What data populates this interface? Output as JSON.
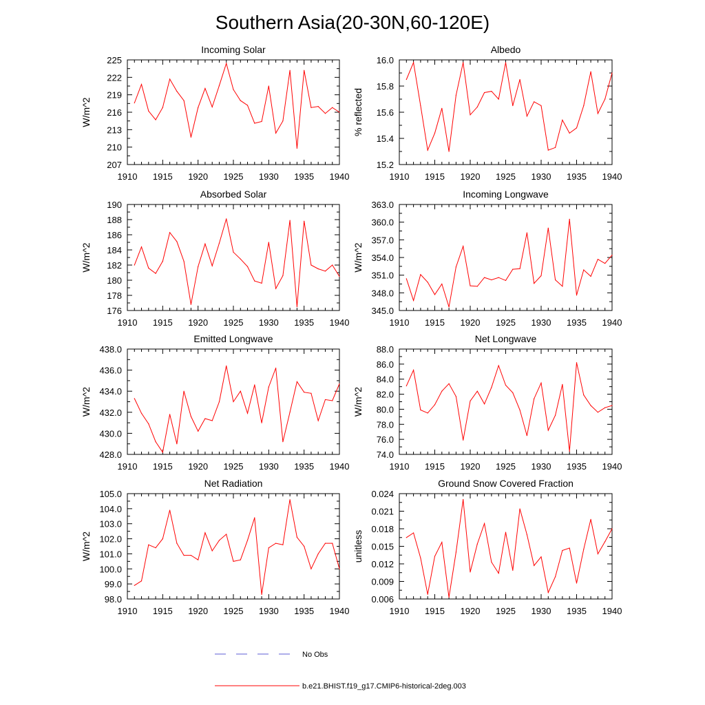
{
  "figure": {
    "title": "Southern Asia(20-30N,60-120E)",
    "legend": [
      {
        "label": "No Obs",
        "color": "#5b5bd6",
        "dash": "dashed"
      },
      {
        "label": "b.e21.BHIST.f19_g17.CMIP6-historical-2deg.003",
        "color": "#ff0000",
        "dash": "solid"
      }
    ]
  },
  "chart_data": [
    {
      "type": "line",
      "title": "Incoming Solar",
      "ylabel": "W/m^2",
      "xlim": [
        1910,
        1940
      ],
      "ylim": [
        207,
        225
      ],
      "yticks": [
        "207",
        "210",
        "213",
        "216",
        "219",
        "222",
        "225"
      ],
      "xticks": [
        "1910",
        "1915",
        "1920",
        "1925",
        "1930",
        "1935",
        "1940"
      ],
      "x": [
        1911,
        1912,
        1913,
        1914,
        1915,
        1916,
        1917,
        1918,
        1919,
        1920,
        1921,
        1922,
        1923,
        1924,
        1925,
        1926,
        1927,
        1928,
        1929,
        1930,
        1931,
        1932,
        1933,
        1934,
        1935,
        1936,
        1937,
        1938,
        1939,
        1940
      ],
      "series": [
        {
          "name": "b.e21.BHIST.f19_g17.CMIP6-historical-2deg.003",
          "color": "#ff0000",
          "values": [
            217.6,
            220.8,
            216.2,
            214.7,
            216.8,
            221.7,
            219.6,
            218.0,
            211.7,
            216.8,
            220.1,
            216.9,
            220.6,
            224.4,
            219.9,
            218.0,
            217.2,
            214.1,
            214.4,
            220.5,
            212.4,
            214.5,
            223.2,
            209.8,
            223.2,
            216.8,
            217.0,
            215.8,
            216.8,
            216.0
          ]
        }
      ]
    },
    {
      "type": "line",
      "title": "Albedo",
      "ylabel": "% reflected",
      "xlim": [
        1910,
        1940
      ],
      "ylim": [
        15.2,
        16.0
      ],
      "yticks": [
        "15.2",
        "15.4",
        "15.6",
        "15.8",
        "16.0"
      ],
      "xticks": [
        "1910",
        "1915",
        "1920",
        "1925",
        "1930",
        "1935",
        "1940"
      ],
      "x": [
        1911,
        1912,
        1913,
        1914,
        1915,
        1916,
        1917,
        1918,
        1919,
        1920,
        1921,
        1922,
        1923,
        1924,
        1925,
        1926,
        1927,
        1928,
        1929,
        1930,
        1931,
        1932,
        1933,
        1934,
        1935,
        1936,
        1937,
        1938,
        1939,
        1940
      ],
      "series": [
        {
          "name": "b.e21.BHIST.f19_g17.CMIP6-historical-2deg.003",
          "color": "#ff0000",
          "values": [
            15.85,
            15.98,
            15.65,
            15.31,
            15.44,
            15.63,
            15.3,
            15.73,
            15.98,
            15.58,
            15.64,
            15.75,
            15.76,
            15.7,
            15.98,
            15.65,
            15.85,
            15.57,
            15.68,
            15.65,
            15.31,
            15.33,
            15.54,
            15.44,
            15.48,
            15.65,
            15.91,
            15.59,
            15.7,
            15.9
          ]
        }
      ]
    },
    {
      "type": "line",
      "title": "Absorbed Solar",
      "ylabel": "W/m^2",
      "xlim": [
        1910,
        1940
      ],
      "ylim": [
        176,
        190
      ],
      "yticks": [
        "176",
        "178",
        "180",
        "182",
        "184",
        "186",
        "188",
        "190"
      ],
      "xticks": [
        "1910",
        "1915",
        "1920",
        "1925",
        "1930",
        "1935",
        "1940"
      ],
      "x": [
        1911,
        1912,
        1913,
        1914,
        1915,
        1916,
        1917,
        1918,
        1919,
        1920,
        1921,
        1922,
        1923,
        1924,
        1925,
        1926,
        1927,
        1928,
        1929,
        1930,
        1931,
        1932,
        1933,
        1934,
        1935,
        1936,
        1937,
        1938,
        1939,
        1940
      ],
      "series": [
        {
          "name": "b.e21.BHIST.f19_g17.CMIP6-historical-2deg.003",
          "color": "#ff0000",
          "values": [
            182.0,
            184.4,
            181.6,
            180.9,
            182.5,
            186.3,
            185.1,
            182.5,
            176.8,
            181.8,
            184.8,
            181.9,
            184.9,
            188.1,
            183.7,
            182.8,
            181.8,
            179.9,
            179.6,
            185.0,
            178.9,
            180.6,
            187.9,
            176.5,
            187.8,
            182.0,
            181.5,
            181.2,
            182.0,
            180.5
          ]
        }
      ]
    },
    {
      "type": "line",
      "title": "Incoming Longwave",
      "ylabel": "W/m^2",
      "xlim": [
        1910,
        1940
      ],
      "ylim": [
        345.0,
        363.0
      ],
      "yticks": [
        "345.0",
        "348.0",
        "351.0",
        "354.0",
        "357.0",
        "360.0",
        "363.0"
      ],
      "xticks": [
        "1910",
        "1915",
        "1920",
        "1925",
        "1930",
        "1935",
        "1940"
      ],
      "x": [
        1911,
        1912,
        1913,
        1914,
        1915,
        1916,
        1917,
        1918,
        1919,
        1920,
        1921,
        1922,
        1923,
        1924,
        1925,
        1926,
        1927,
        1928,
        1929,
        1930,
        1931,
        1932,
        1933,
        1934,
        1935,
        1936,
        1937,
        1938,
        1939,
        1940
      ],
      "series": [
        {
          "name": "b.e21.BHIST.f19_g17.CMIP6-historical-2deg.003",
          "color": "#ff0000",
          "values": [
            350.4,
            346.7,
            351.1,
            349.8,
            347.7,
            349.5,
            345.6,
            352.4,
            355.9,
            349.2,
            349.1,
            350.6,
            350.2,
            350.6,
            350.1,
            352.0,
            352.1,
            358.2,
            349.6,
            350.9,
            359.0,
            350.2,
            349.1,
            360.5,
            347.6,
            351.9,
            350.8,
            353.7,
            353.0,
            354.4
          ]
        }
      ]
    },
    {
      "type": "line",
      "title": "Emitted Longwave",
      "ylabel": "W/m^2",
      "xlim": [
        1910,
        1940
      ],
      "ylim": [
        428.0,
        438.0
      ],
      "yticks": [
        "428.0",
        "430.0",
        "432.0",
        "434.0",
        "436.0",
        "438.0"
      ],
      "xticks": [
        "1910",
        "1915",
        "1920",
        "1925",
        "1930",
        "1935",
        "1940"
      ],
      "x": [
        1911,
        1912,
        1913,
        1914,
        1915,
        1916,
        1917,
        1918,
        1919,
        1920,
        1921,
        1922,
        1923,
        1924,
        1925,
        1926,
        1927,
        1928,
        1929,
        1930,
        1931,
        1932,
        1933,
        1934,
        1935,
        1936,
        1937,
        1938,
        1939,
        1940
      ],
      "series": [
        {
          "name": "b.e21.BHIST.f19_g17.CMIP6-historical-2deg.003",
          "color": "#ff0000",
          "values": [
            433.3,
            431.9,
            430.9,
            429.2,
            428.2,
            431.8,
            429.0,
            434.0,
            431.6,
            430.2,
            431.4,
            431.2,
            433.0,
            436.4,
            433.0,
            434.0,
            431.9,
            434.6,
            431.0,
            434.4,
            436.2,
            429.2,
            432.0,
            434.9,
            433.9,
            433.8,
            431.2,
            433.2,
            433.1,
            434.7
          ]
        }
      ]
    },
    {
      "type": "line",
      "title": "Net Longwave",
      "ylabel": "W/m^2",
      "xlim": [
        1910,
        1940
      ],
      "ylim": [
        74.0,
        88.0
      ],
      "yticks": [
        "74.0",
        "76.0",
        "78.0",
        "80.0",
        "82.0",
        "84.0",
        "86.0",
        "88.0"
      ],
      "xticks": [
        "1910",
        "1915",
        "1920",
        "1925",
        "1930",
        "1935",
        "1940"
      ],
      "x": [
        1911,
        1912,
        1913,
        1914,
        1915,
        1916,
        1917,
        1918,
        1919,
        1920,
        1921,
        1922,
        1923,
        1924,
        1925,
        1926,
        1927,
        1928,
        1929,
        1930,
        1931,
        1932,
        1933,
        1934,
        1935,
        1936,
        1937,
        1938,
        1939,
        1940
      ],
      "series": [
        {
          "name": "b.e21.BHIST.f19_g17.CMIP6-historical-2deg.003",
          "color": "#ff0000",
          "values": [
            83.1,
            85.2,
            79.9,
            79.5,
            80.6,
            82.4,
            83.4,
            81.7,
            75.9,
            81.1,
            82.4,
            80.7,
            82.9,
            85.8,
            83.2,
            82.2,
            79.9,
            76.5,
            81.4,
            83.5,
            77.2,
            79.2,
            83.3,
            74.4,
            86.2,
            81.9,
            80.5,
            79.6,
            80.2,
            80.5
          ]
        }
      ]
    },
    {
      "type": "line",
      "title": "Net Radiation",
      "ylabel": "W/m^2",
      "xlim": [
        1910,
        1940
      ],
      "ylim": [
        98.0,
        105.0
      ],
      "yticks": [
        "98.0",
        "99.0",
        "100.0",
        "101.0",
        "102.0",
        "103.0",
        "104.0",
        "105.0"
      ],
      "xticks": [
        "1910",
        "1915",
        "1920",
        "1925",
        "1930",
        "1935",
        "1940"
      ],
      "x": [
        1911,
        1912,
        1913,
        1914,
        1915,
        1916,
        1917,
        1918,
        1919,
        1920,
        1921,
        1922,
        1923,
        1924,
        1925,
        1926,
        1927,
        1928,
        1929,
        1930,
        1931,
        1932,
        1933,
        1934,
        1935,
        1936,
        1937,
        1938,
        1939,
        1940
      ],
      "series": [
        {
          "name": "b.e21.BHIST.f19_g17.CMIP6-historical-2deg.003",
          "color": "#ff0000",
          "values": [
            98.9,
            99.2,
            101.6,
            101.4,
            102.0,
            103.9,
            101.7,
            100.9,
            100.9,
            100.6,
            102.4,
            101.2,
            101.9,
            102.3,
            100.5,
            100.6,
            101.9,
            103.4,
            98.3,
            101.4,
            101.7,
            101.6,
            104.6,
            102.1,
            101.5,
            100.0,
            101.0,
            101.7,
            101.7,
            100.0
          ]
        }
      ]
    },
    {
      "type": "line",
      "title": "Ground Snow Covered Fraction",
      "ylabel": "unitless",
      "xlim": [
        1910,
        1940
      ],
      "ylim": [
        0.006,
        0.024
      ],
      "yticks": [
        "0.006",
        "0.009",
        "0.012",
        "0.015",
        "0.018",
        "0.021",
        "0.024"
      ],
      "xticks": [
        "1910",
        "1915",
        "1920",
        "1925",
        "1930",
        "1935",
        "1940"
      ],
      "x": [
        1911,
        1912,
        1913,
        1914,
        1915,
        1916,
        1917,
        1918,
        1919,
        1920,
        1921,
        1922,
        1923,
        1924,
        1925,
        1926,
        1927,
        1928,
        1929,
        1930,
        1931,
        1932,
        1933,
        1934,
        1935,
        1936,
        1937,
        1938,
        1939,
        1940
      ],
      "series": [
        {
          "name": "b.e21.BHIST.f19_g17.CMIP6-historical-2deg.003",
          "color": "#ff0000",
          "values": [
            0.0165,
            0.0173,
            0.013,
            0.0068,
            0.0133,
            0.0157,
            0.0063,
            0.014,
            0.023,
            0.0106,
            0.0154,
            0.0189,
            0.0123,
            0.0104,
            0.0174,
            0.0109,
            0.0214,
            0.017,
            0.0117,
            0.0132,
            0.0071,
            0.0098,
            0.0143,
            0.0147,
            0.0087,
            0.0145,
            0.0196,
            0.0137,
            0.0158,
            0.018
          ]
        }
      ]
    }
  ]
}
